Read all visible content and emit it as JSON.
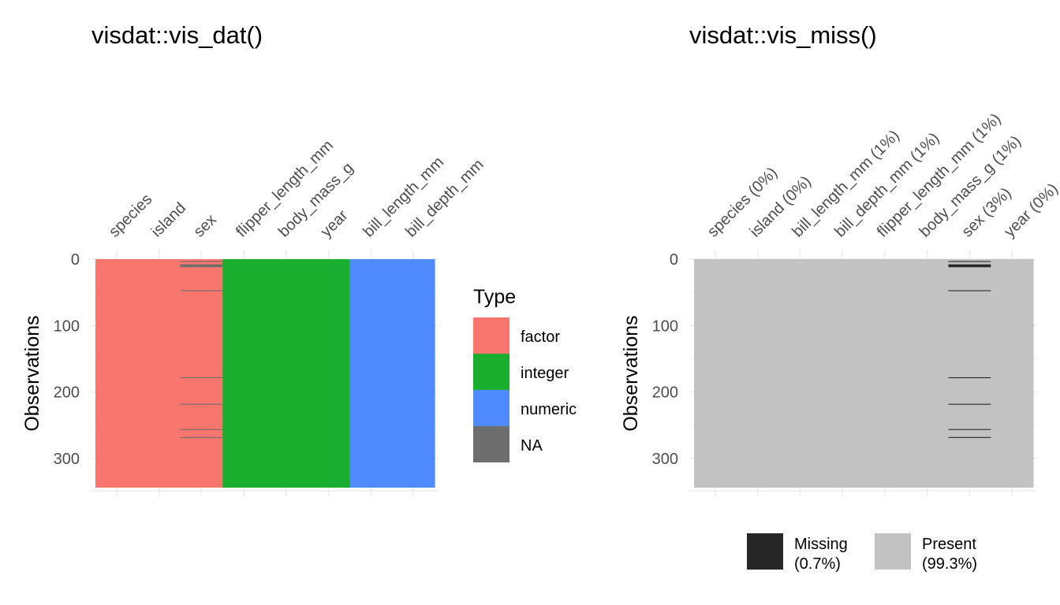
{
  "chart_data": [
    {
      "type": "heatmap",
      "title": "visdat::vis_dat()",
      "ylabel": "Observations",
      "n_obs": 344,
      "ylim": [
        0,
        344
      ],
      "yticks": [
        "0",
        "100",
        "200",
        "300"
      ],
      "ytick_values": [
        0,
        100,
        200,
        300
      ],
      "columns": [
        "species",
        "island",
        "sex",
        "flipper_length_mm",
        "body_mass_g",
        "year",
        "bill_length_mm",
        "bill_depth_mm"
      ],
      "column_types": [
        "factor",
        "factor",
        "factor",
        "integer",
        "integer",
        "integer",
        "numeric",
        "numeric"
      ],
      "legend": {
        "title": "Type",
        "placement": "right",
        "items": [
          {
            "label": "factor",
            "color": "#F8766D"
          },
          {
            "label": "integer",
            "color": "#1AAE2E"
          },
          {
            "label": "numeric",
            "color": "#4F8BFF"
          },
          {
            "label": "NA",
            "color": "#6E6E6E"
          }
        ]
      },
      "missing": {
        "sex": [
          4,
          9,
          10,
          11,
          12,
          48,
          179,
          219,
          257,
          269
        ]
      }
    },
    {
      "type": "heatmap",
      "title": "visdat::vis_miss()",
      "ylabel": "Observations",
      "n_obs": 344,
      "ylim": [
        0,
        344
      ],
      "yticks": [
        "0",
        "100",
        "200",
        "300"
      ],
      "ytick_values": [
        0,
        100,
        200,
        300
      ],
      "columns": [
        "species (0%)",
        "island (0%)",
        "bill_length_mm (1%)",
        "bill_depth_mm (1%)",
        "flipper_length_mm (1%)",
        "body_mass_g (1%)",
        "sex (3%)",
        "year (0%)"
      ],
      "column_keys": [
        "species",
        "island",
        "bill_length_mm",
        "bill_depth_mm",
        "flipper_length_mm",
        "body_mass_g",
        "sex",
        "year"
      ],
      "legend": {
        "placement": "bottom",
        "items": [
          {
            "label_line1": "Missing",
            "label_line2": "(0.7%)",
            "color": "#262626"
          },
          {
            "label_line1": "Present",
            "label_line2": "(99.3%)",
            "color": "#C2C2C2"
          }
        ]
      },
      "missing": {
        "sex": [
          4,
          9,
          10,
          11,
          12,
          48,
          179,
          219,
          257,
          269
        ]
      }
    }
  ]
}
